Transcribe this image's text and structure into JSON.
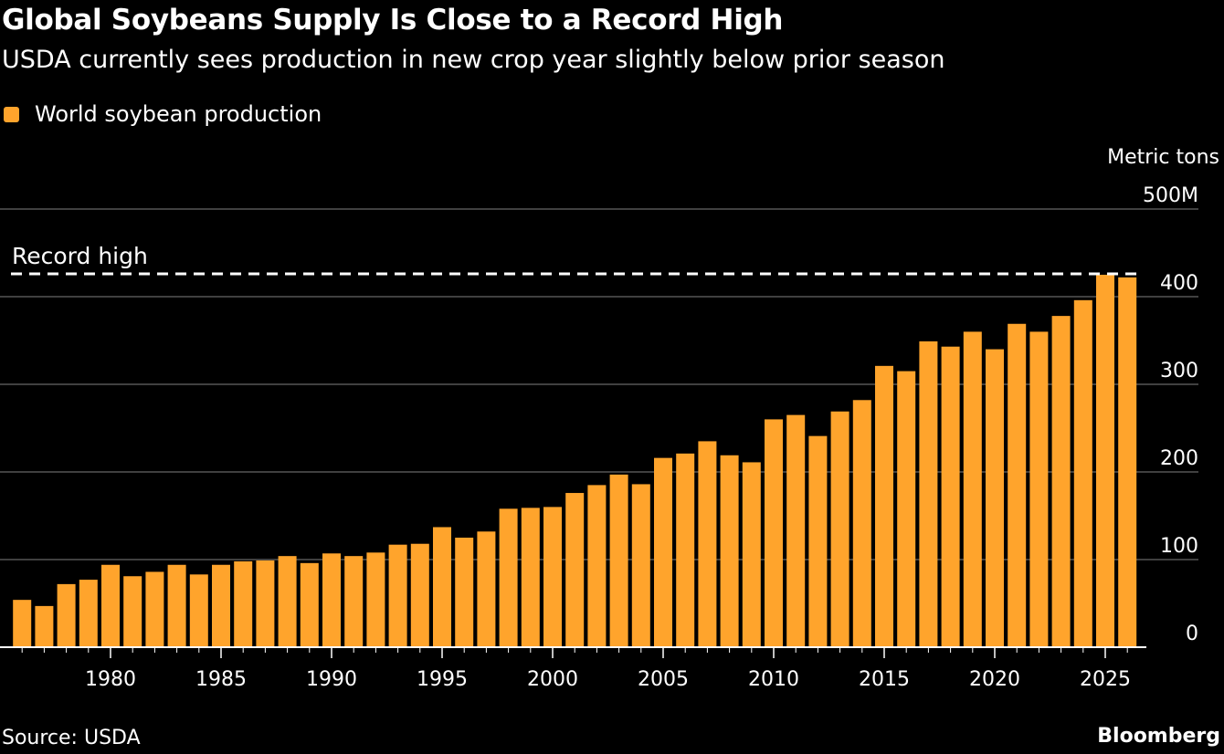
{
  "title": "Global Soybeans Supply Is Close to a Record High",
  "subtitle": "USDA currently sees production in new crop year slightly below prior season",
  "source": "Source: USDA",
  "brand": "Bloomberg",
  "colors": {
    "bar": "#ffa42c",
    "background": "#000000",
    "grid": "#555555"
  },
  "chart_data": {
    "type": "bar",
    "title": "Global Soybeans Supply Is Close to a Record High",
    "ylabel": "Metric tons",
    "ylim": [
      0,
      500
    ],
    "yticks": [
      0,
      100,
      200,
      300,
      400,
      500
    ],
    "ytick_labels": [
      "0",
      "100",
      "200",
      "300",
      "400",
      "500M"
    ],
    "xticks": [
      1980,
      1985,
      1990,
      1995,
      2000,
      2005,
      2010,
      2015,
      2020,
      2025
    ],
    "grid": true,
    "legend": {
      "placement": "top-left",
      "entries": [
        "World soybean production"
      ]
    },
    "annotations": [
      {
        "text": "Record high",
        "value": 426,
        "style": "dashed-line"
      }
    ],
    "series": [
      {
        "name": "World soybean production",
        "x": [
          1976,
          1977,
          1978,
          1979,
          1980,
          1981,
          1982,
          1983,
          1984,
          1985,
          1986,
          1987,
          1988,
          1989,
          1990,
          1991,
          1992,
          1993,
          1994,
          1995,
          1996,
          1997,
          1998,
          1999,
          2000,
          2001,
          2002,
          2003,
          2004,
          2005,
          2006,
          2007,
          2008,
          2009,
          2010,
          2011,
          2012,
          2013,
          2014,
          2015,
          2016,
          2017,
          2018,
          2019,
          2020,
          2021,
          2022,
          2023,
          2024,
          2025,
          2026
        ],
        "values": [
          54,
          47,
          72,
          77,
          94,
          81,
          86,
          94,
          83,
          94,
          98,
          99,
          104,
          96,
          107,
          104,
          108,
          117,
          118,
          137,
          125,
          132,
          158,
          159,
          160,
          176,
          185,
          197,
          186,
          216,
          221,
          235,
          219,
          211,
          260,
          265,
          241,
          269,
          282,
          321,
          315,
          349,
          343,
          360,
          340,
          369,
          360,
          378,
          396,
          425,
          422
        ]
      }
    ]
  }
}
